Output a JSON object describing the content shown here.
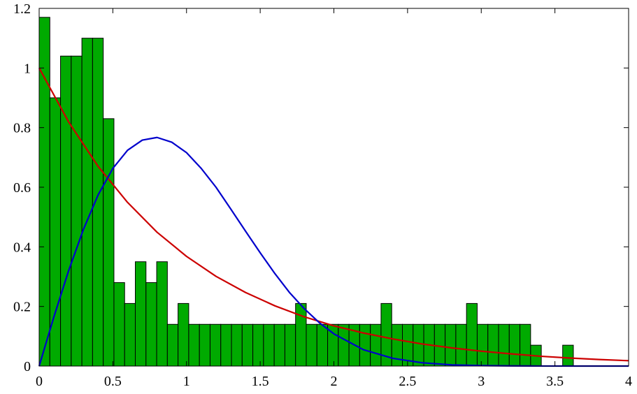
{
  "chart_data": {
    "type": "bar",
    "title": "",
    "xlabel": "",
    "ylabel": "",
    "xlim": [
      0,
      4
    ],
    "ylim": [
      0,
      1.2
    ],
    "grid": false,
    "legend": "none",
    "x_ticks": [
      0,
      0.5,
      1,
      1.5,
      2,
      2.5,
      3,
      3.5,
      4
    ],
    "x_tick_labels": [
      "0",
      "0.5",
      "1",
      "1.5",
      "2",
      "2.5",
      "3",
      "3.5",
      "4"
    ],
    "y_ticks": [
      0,
      0.2,
      0.4,
      0.6,
      0.8,
      1,
      1.2
    ],
    "y_tick_labels": [
      "0",
      "0.2",
      "0.4",
      "0.6",
      "0.8",
      "1",
      "1.2"
    ],
    "histogram": {
      "bin_start": 0,
      "bin_width": 0.0725,
      "color": "#00aa00",
      "edge_color": "#000000",
      "values": [
        1.17,
        0.9,
        1.04,
        1.04,
        1.1,
        1.1,
        0.83,
        0.28,
        0.21,
        0.35,
        0.28,
        0.35,
        0.14,
        0.21,
        0.14,
        0.14,
        0.14,
        0.14,
        0.14,
        0.14,
        0.14,
        0.14,
        0.14,
        0.14,
        0.21,
        0.14,
        0.14,
        0.14,
        0.14,
        0.14,
        0.14,
        0.14,
        0.21,
        0.14,
        0.14,
        0.14,
        0.14,
        0.14,
        0.14,
        0.14,
        0.21,
        0.14,
        0.14,
        0.14,
        0.14,
        0.14,
        0.07,
        0,
        0,
        0.07
      ]
    },
    "series": [
      {
        "type": "line",
        "color": "#cc0000",
        "x": [
          0,
          0.2,
          0.4,
          0.6,
          0.8,
          1.0,
          1.2,
          1.4,
          1.6,
          1.8,
          2.0,
          2.2,
          2.4,
          2.6,
          2.8,
          3.0,
          3.2,
          3.4,
          3.6,
          3.8,
          4.0
        ],
        "y": [
          1.0,
          0.819,
          0.67,
          0.549,
          0.449,
          0.368,
          0.301,
          0.247,
          0.202,
          0.165,
          0.135,
          0.111,
          0.091,
          0.074,
          0.061,
          0.05,
          0.041,
          0.033,
          0.027,
          0.022,
          0.018
        ]
      },
      {
        "type": "line",
        "color": "#0000cc",
        "x": [
          0,
          0.1,
          0.2,
          0.3,
          0.4,
          0.5,
          0.6,
          0.7,
          0.8,
          0.9,
          1.0,
          1.1,
          1.2,
          1.3,
          1.4,
          1.5,
          1.6,
          1.7,
          1.8,
          1.9,
          2.0,
          2.2,
          2.4,
          2.6,
          2.8,
          3.0,
          3.2,
          3.4,
          3.6,
          3.8,
          4.0
        ],
        "y": [
          0,
          0.165,
          0.32,
          0.458,
          0.574,
          0.663,
          0.724,
          0.758,
          0.767,
          0.751,
          0.716,
          0.663,
          0.6,
          0.527,
          0.453,
          0.38,
          0.31,
          0.246,
          0.192,
          0.146,
          0.108,
          0.055,
          0.026,
          0.011,
          0.004,
          0.0015,
          0.0005,
          0.0002,
          0,
          0,
          0
        ]
      }
    ]
  }
}
